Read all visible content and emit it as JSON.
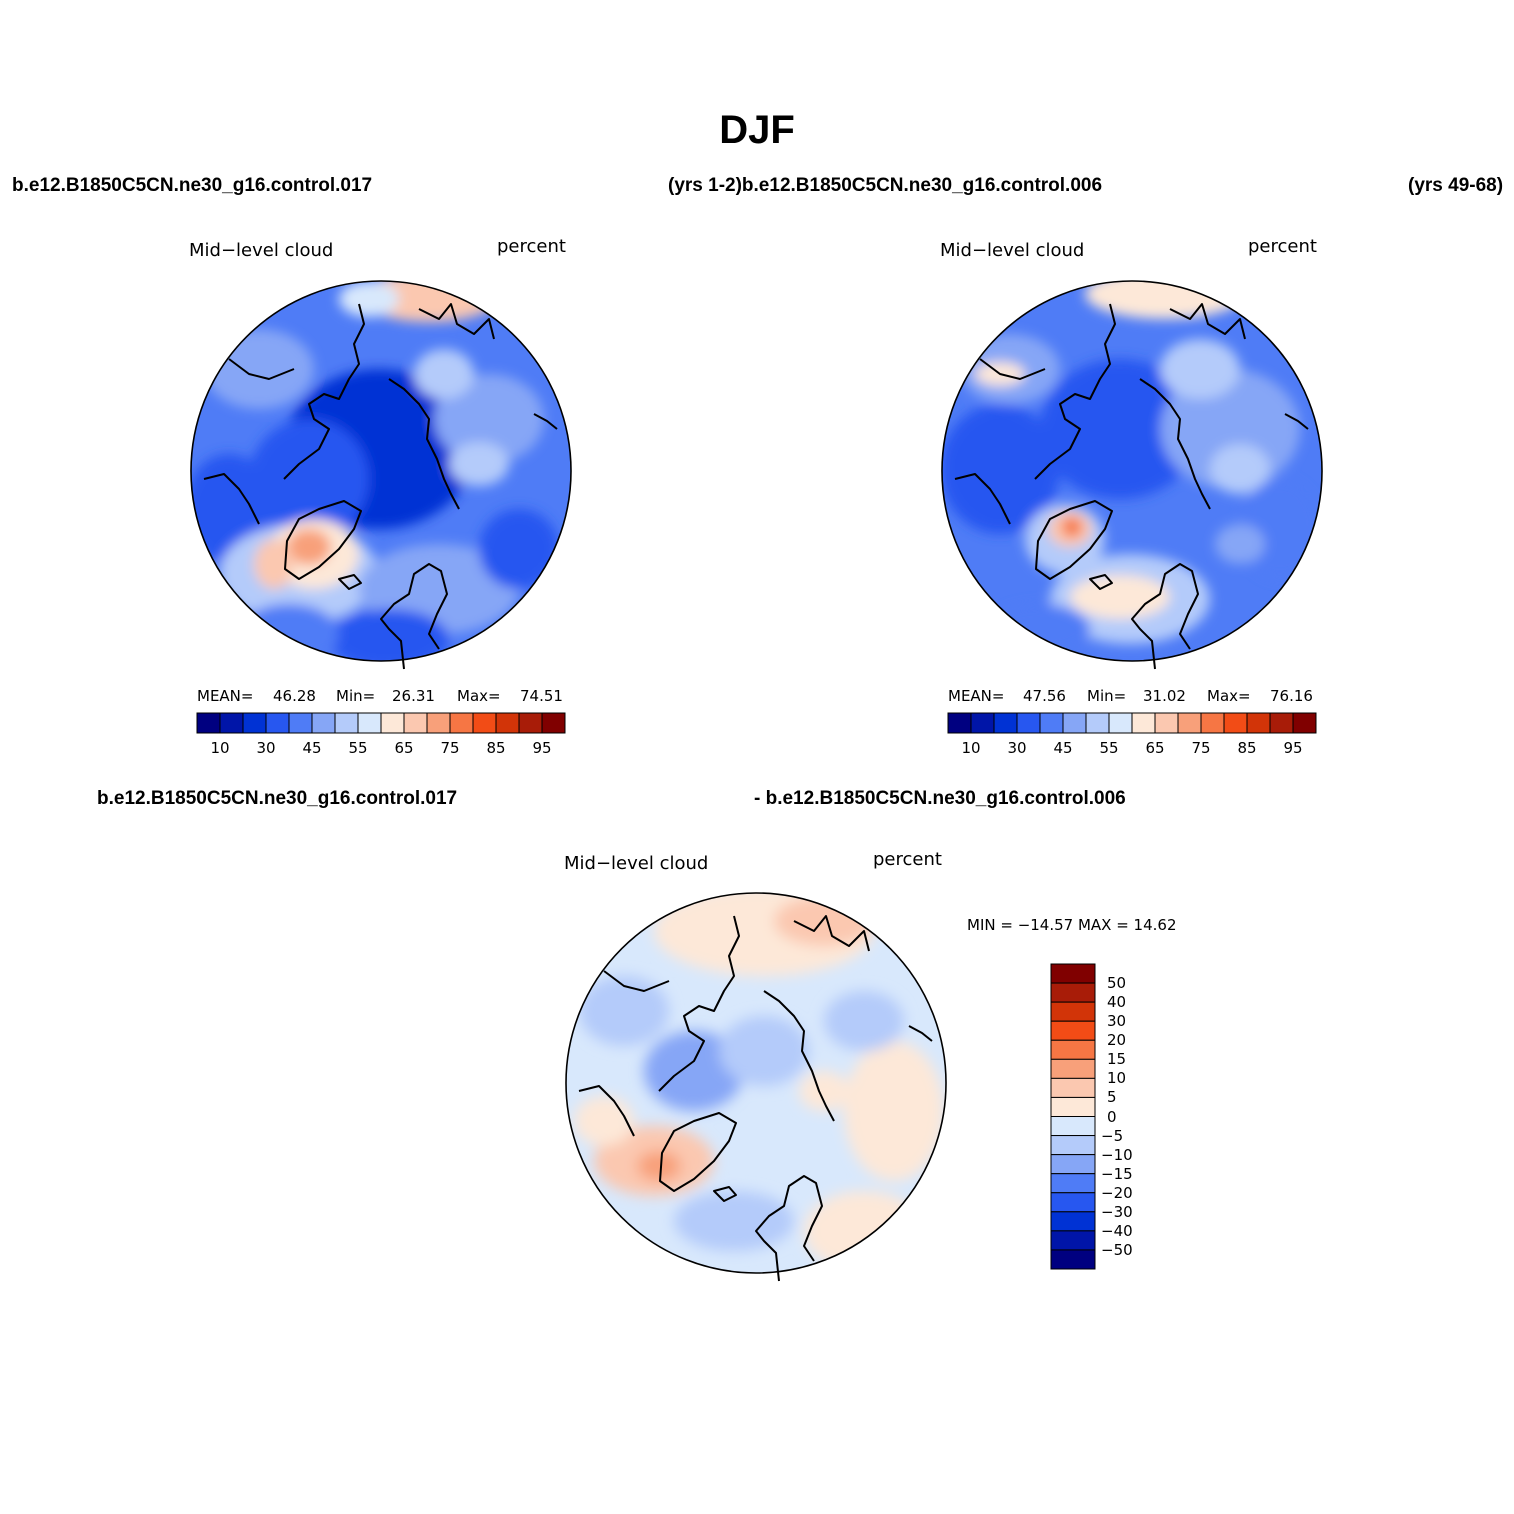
{
  "title": "DJF",
  "headers": {
    "left_case": "b.e12.B1850C5CN.ne30_g16.control.017",
    "mid_case": "(yrs 1-2)b.e12.B1850C5CN.ne30_g16.control.006",
    "right_years": "(yrs 49-68)",
    "diff_left": "b.e12.B1850C5CN.ne30_g16.control.017",
    "diff_right": "- b.e12.B1850C5CN.ne30_g16.control.006"
  },
  "panels": [
    {
      "variable": "Mid−level cloud",
      "units": "percent",
      "stats": {
        "mean_label": "MEAN=",
        "mean": "46.28",
        "min_label": "Min=",
        "min": "26.31",
        "max_label": "Max=",
        "max": "74.51"
      }
    },
    {
      "variable": "Mid−level cloud",
      "units": "percent",
      "stats": {
        "mean_label": "MEAN=",
        "mean": "47.56",
        "min_label": "Min=",
        "min": "31.02",
        "max_label": "Max=",
        "max": "76.16"
      }
    }
  ],
  "diff_panel": {
    "variable": "Mid−level cloud",
    "units": "percent",
    "minmax": "MIN = −14.57 MAX =  14.62"
  },
  "colorbar": {
    "colors": [
      "#000080",
      "#0015a8",
      "#0032d4",
      "#2757f0",
      "#4f7cf6",
      "#86a6f6",
      "#b4cbfa",
      "#d8e8fc",
      "#fde8d8",
      "#fbc8b0",
      "#f8a07a",
      "#f67644",
      "#f24c16",
      "#d23408",
      "#a81c08",
      "#800000"
    ],
    "tick_labels": [
      "10",
      "30",
      "45",
      "55",
      "65",
      "75",
      "85",
      "95"
    ]
  },
  "diff_colorbar": {
    "colors": [
      "#800000",
      "#a81c08",
      "#d23408",
      "#f24c16",
      "#f67644",
      "#f8a07a",
      "#fbc8b0",
      "#fde8d8",
      "#d8e8fc",
      "#b4cbfa",
      "#86a6f6",
      "#4f7cf6",
      "#2757f0",
      "#0032d4",
      "#0015a8",
      "#000080"
    ],
    "tick_labels": [
      "50",
      "40",
      "30",
      "20",
      "15",
      "10",
      "5",
      "0",
      "−5",
      "−10",
      "−15",
      "−20",
      "−30",
      "−40",
      "−50"
    ]
  }
}
